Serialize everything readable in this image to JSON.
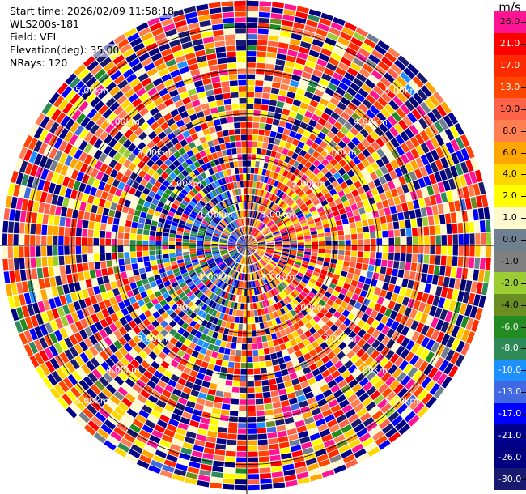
{
  "info": {
    "start_time": "Start time: 2026/02/09 11:58:18",
    "instrument": "WLS200s-181",
    "field": "Field: VEL",
    "elevation": "Elevation(deg): 35.00",
    "nrays": "NRays: 120"
  },
  "range_rings": [
    {
      "label": "1.00km",
      "km": 1
    },
    {
      "label": "2.00km",
      "km": 2
    },
    {
      "label": "3.00km",
      "km": 3
    },
    {
      "label": "4.00km",
      "km": 4
    },
    {
      "label": "5.00km",
      "km": 5
    }
  ],
  "max_range_km": 5.6,
  "rays": 120,
  "colorbar": {
    "unit": "m/s",
    "entries": [
      {
        "label": "26.0",
        "color": "#ff1493"
      },
      {
        "label": "21.0",
        "color": "#ff0000"
      },
      {
        "label": "17.0",
        "color": "#ff2a00"
      },
      {
        "label": "13.0",
        "color": "#ff4500"
      },
      {
        "label": "10.0",
        "color": "#ff6347"
      },
      {
        "label": "8.0",
        "color": "#ff7f50"
      },
      {
        "label": "6.0",
        "color": "#ffa500"
      },
      {
        "label": "4.0",
        "color": "#ffd700"
      },
      {
        "label": "2.0",
        "color": "#ffff00"
      },
      {
        "label": "1.0",
        "color": "#fffacd"
      },
      {
        "label": "0.0",
        "color": "#708090"
      },
      {
        "label": "-1.0",
        "color": "#808080"
      },
      {
        "label": "-2.0",
        "color": "#9acd32"
      },
      {
        "label": "-4.0",
        "color": "#6b8e23"
      },
      {
        "label": "-6.0",
        "color": "#228b22"
      },
      {
        "label": "-8.0",
        "color": "#2e8b57"
      },
      {
        "label": "-10.0",
        "color": "#1e90ff"
      },
      {
        "label": "-13.0",
        "color": "#4169e1"
      },
      {
        "label": "-17.0",
        "color": "#0000ff"
      },
      {
        "label": "-21.0",
        "color": "#00008b"
      },
      {
        "label": "-26.0",
        "color": "#000080"
      },
      {
        "label": "-30.0",
        "color": "#191970"
      }
    ]
  }
}
